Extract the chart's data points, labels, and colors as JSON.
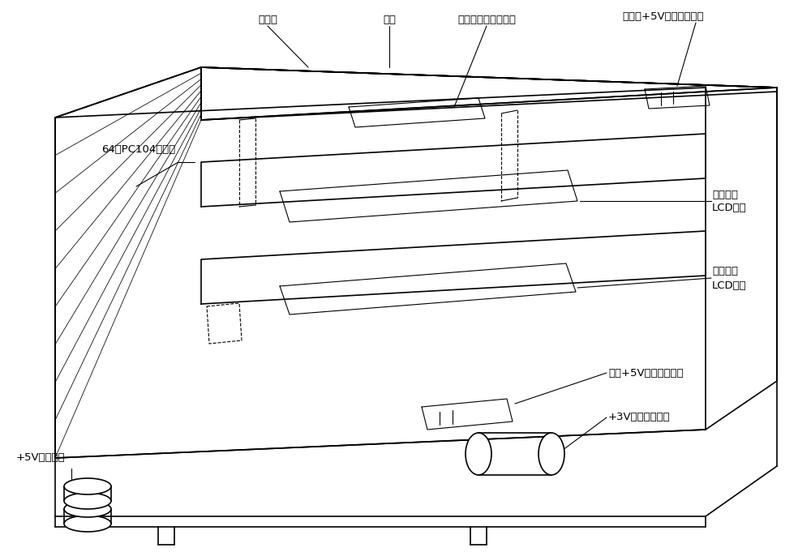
{
  "fig_width": 10.0,
  "fig_height": 6.81,
  "dpi": 100,
  "bg_color": "#ffffff",
  "line_color": "#000000",
  "lw_main": 1.2,
  "lw_thin": 0.8,
  "lw_ann": 0.8,
  "font_size_label": 10,
  "font_size_ann": 9.5,
  "labels": {
    "kuozhanban": "扩展板",
    "zhuban": "主板",
    "wuxian": "无线射频收发器模块",
    "kuozhanban_power": "扩展板+5V直流电源插座",
    "pc104": "64芯PC104插接件",
    "tuxing_lcd_line1": "图形点阵",
    "tuxing_lcd_line2": "LCD模块",
    "zifu_lcd_line1": "字符点阵",
    "zifu_lcd_line2": "LCD模块",
    "zhuban_power": "主板+5V直流电源插座",
    "motor3v": "+3V减速直流电机",
    "motor5v": "+5V步进电机"
  }
}
